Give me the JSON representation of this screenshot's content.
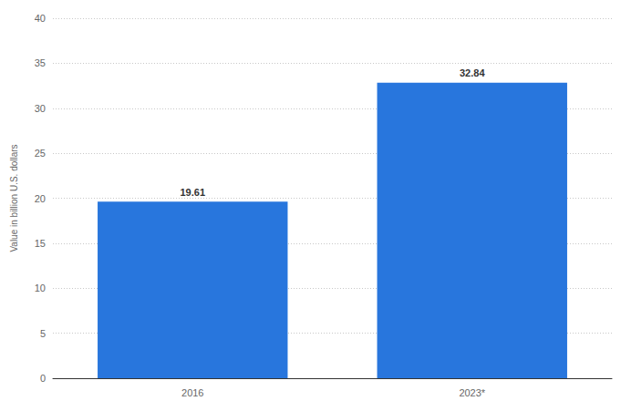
{
  "chart_data": {
    "type": "bar",
    "y_label": "Value in billion U.S. dollars",
    "categories": [
      "2016",
      "2023*"
    ],
    "values": [
      19.61,
      32.84
    ],
    "color": "#2876dd",
    "ylim": [
      0,
      40
    ],
    "yticks": [
      0,
      5,
      10,
      15,
      20,
      25,
      30,
      35,
      40
    ],
    "grid": true,
    "data_labels": true
  }
}
